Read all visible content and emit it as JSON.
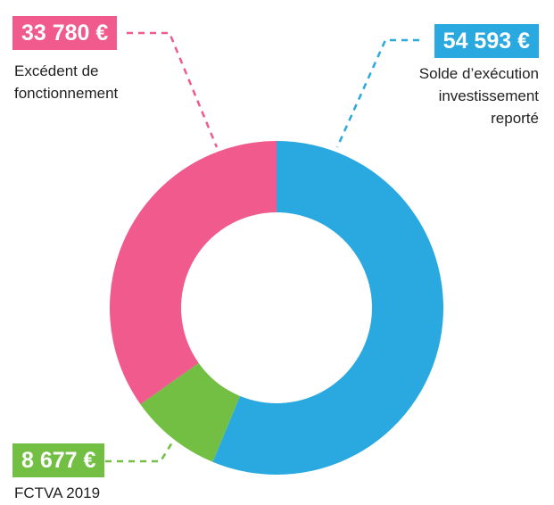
{
  "chart_data": {
    "type": "donut",
    "categories": [
      "Solde d’exécution investissement reporté",
      "FCTVA 2019",
      "Excédent de fonctionnement"
    ],
    "values": [
      54593,
      8677,
      33780
    ],
    "value_labels": [
      "54 593 €",
      "8 677 €",
      "33 780 €"
    ],
    "colors": [
      "#29a9e0",
      "#72bf44",
      "#f05a8c"
    ]
  }
}
